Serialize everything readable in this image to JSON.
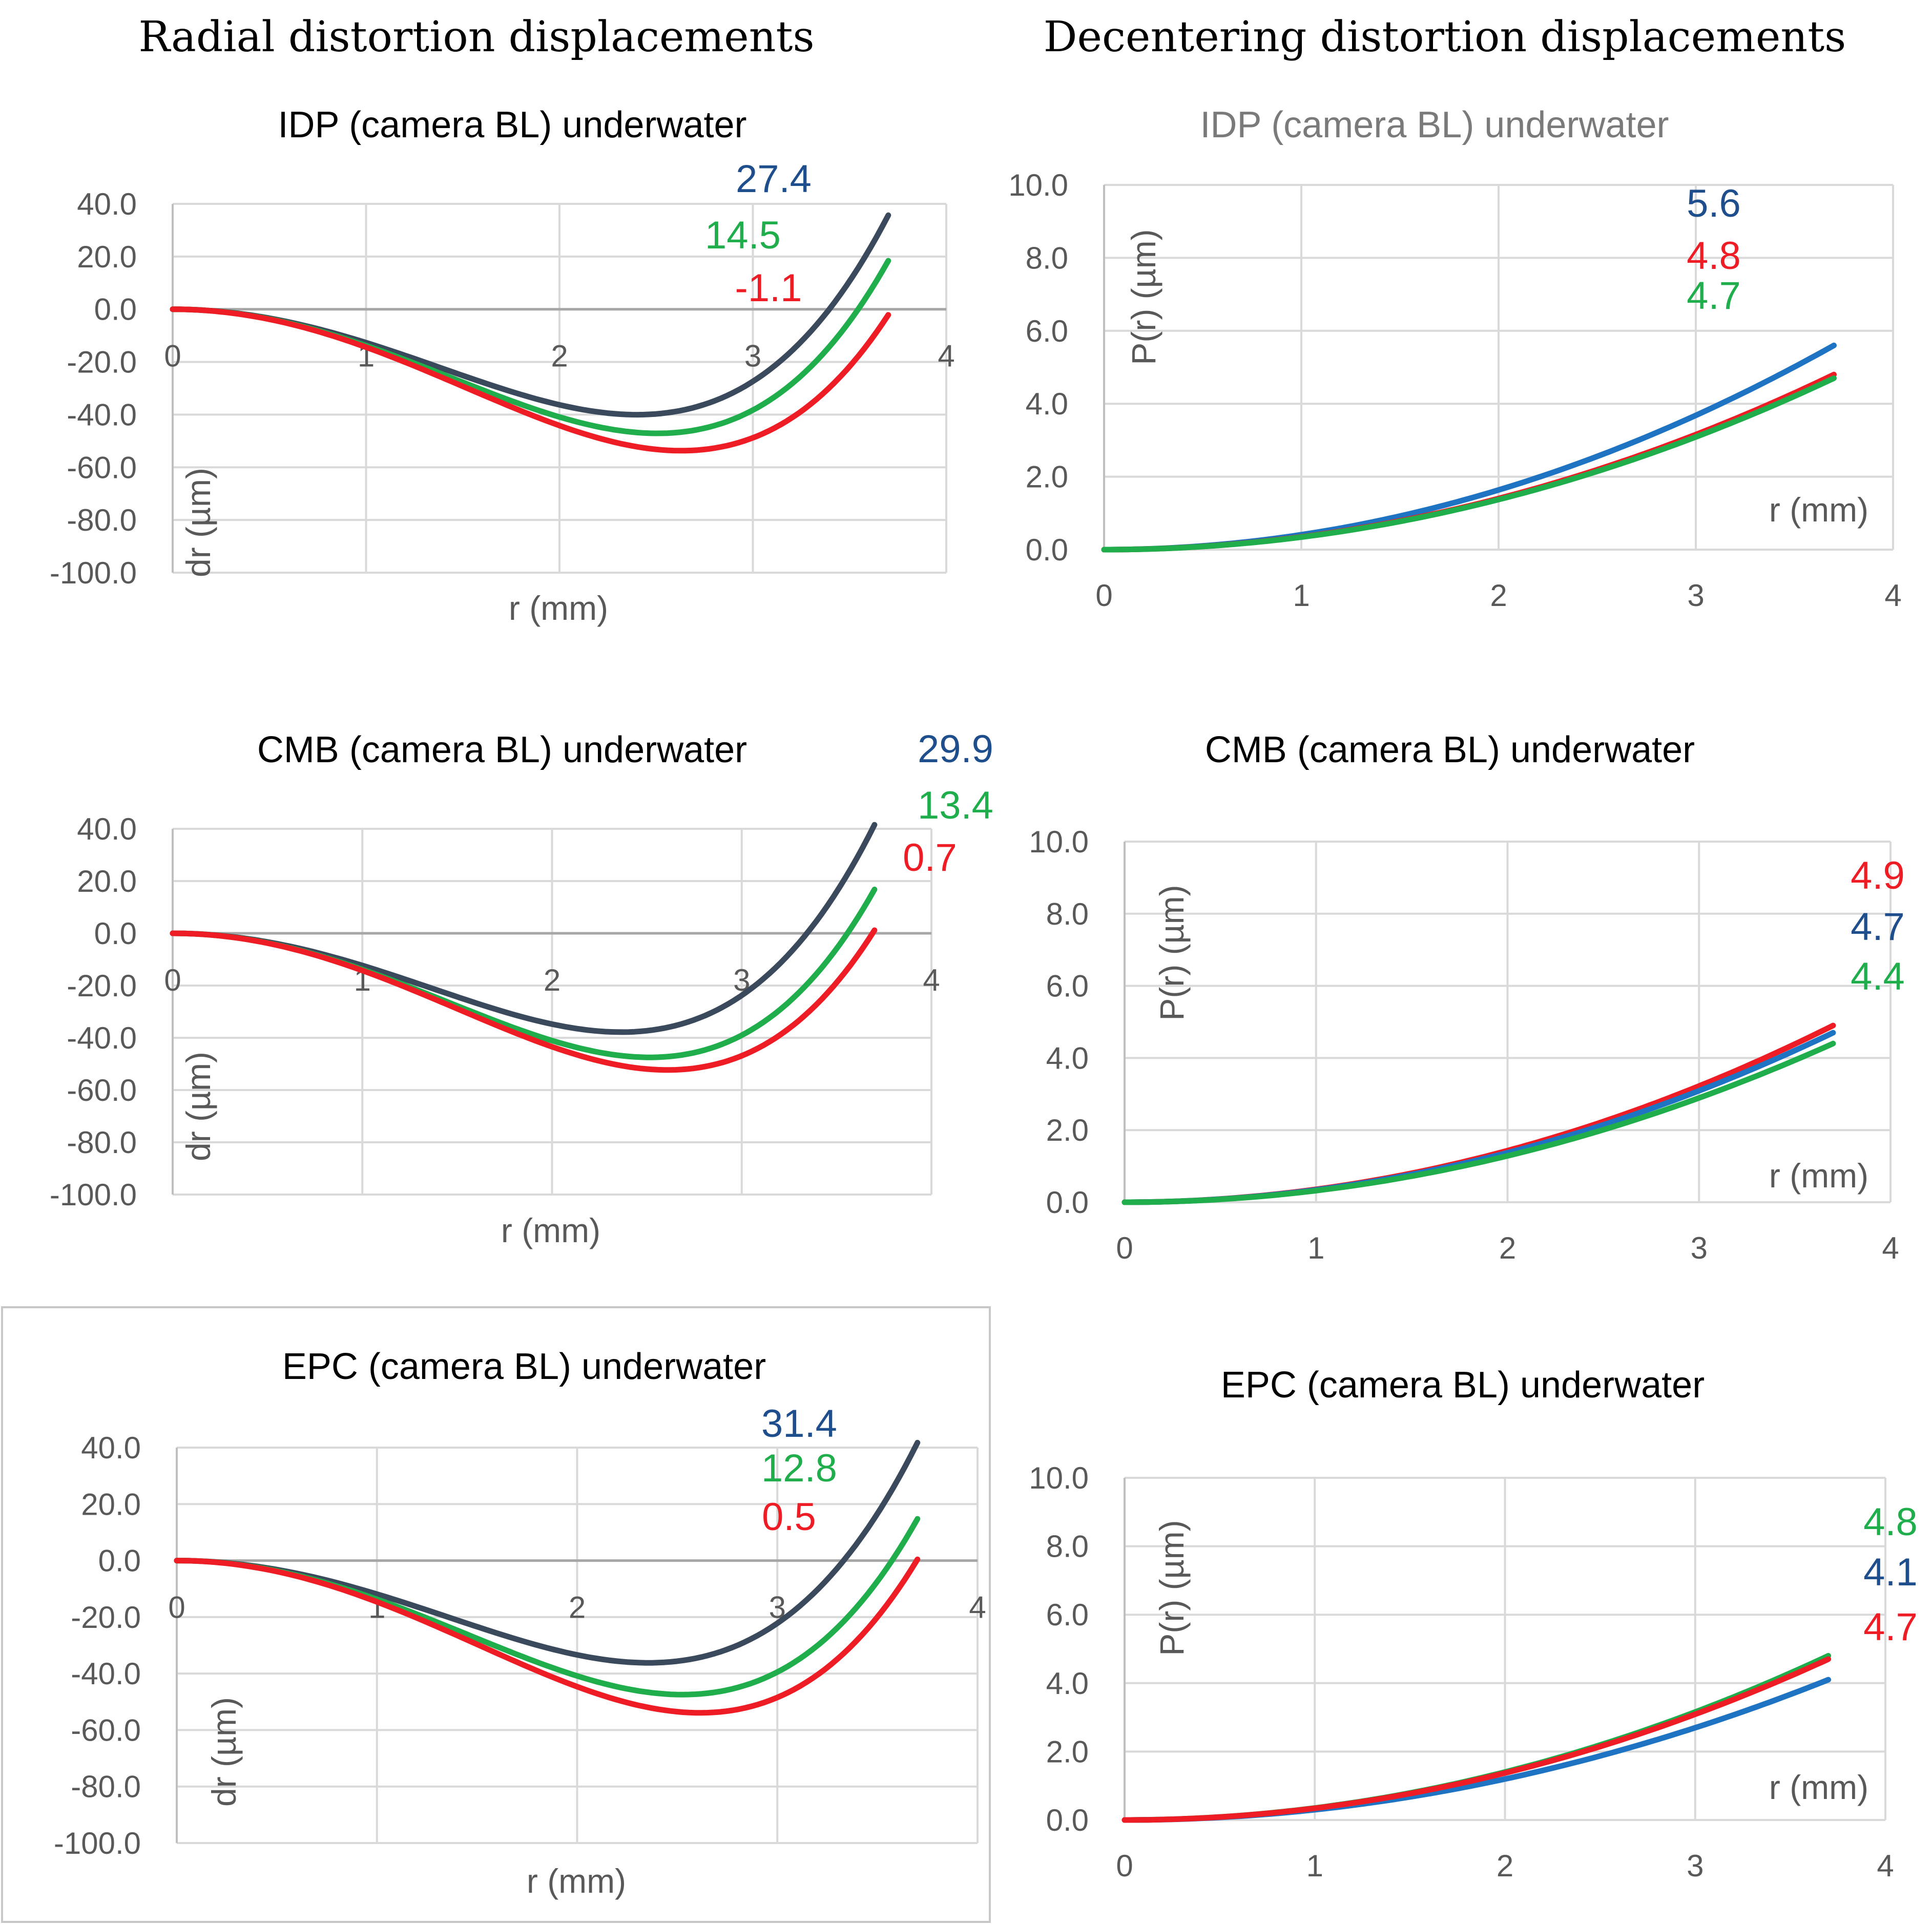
{
  "column_titles": {
    "radial": "Radial distortion displacements",
    "decentering": "Decentering distortion displacements"
  },
  "colors": {
    "dark": "#3a4a5c",
    "green": "#1fae4b",
    "red": "#ee1c24",
    "blue": "#1f73c3",
    "darkblue": "#1f4e8c",
    "grid": "#d9d9d9",
    "axis": "#bfbfbf"
  },
  "chart_data": [
    {
      "id": "radial-idp",
      "type": "line",
      "title": "IDP (camera BL)  underwater",
      "xlabel": "r (mm)",
      "ylabel": "dr (µm)",
      "xlim": [
        0,
        4
      ],
      "ylim": [
        -100,
        40
      ],
      "x_ticks": [
        "0",
        "1",
        "2",
        "3",
        "4"
      ],
      "y_ticks": [
        "40.0",
        "20.0",
        "0.0",
        "-20.0",
        "-40.0",
        "-60.0",
        "-80.0",
        "-100.0"
      ],
      "series": [
        {
          "color": "dark",
          "k1": -13.89,
          "k2": 1.205,
          "x_end": 3.7,
          "end_label": "27.4",
          "label_color": "darkblue"
        },
        {
          "color": "green",
          "k1": -15.0,
          "k2": 1.194,
          "x_end": 3.7,
          "end_label": "14.5",
          "label_color": "green"
        },
        {
          "color": "red",
          "k1": -15.53,
          "k2": 1.123,
          "x_end": 3.7,
          "end_label": "-1.1",
          "label_color": "red"
        }
      ]
    },
    {
      "id": "radial-cmb",
      "type": "line",
      "title": "CMB (camera BL)  underwater",
      "xlabel": "r (mm)",
      "ylabel": "dr (µm)",
      "xlim": [
        0,
        4
      ],
      "ylim": [
        -100,
        40
      ],
      "x_ticks": [
        "0",
        "1",
        "2",
        "3",
        "4"
      ],
      "y_ticks": [
        "40.0",
        "20.0",
        "0.0",
        "-20.0",
        "-40.0",
        "-60.0",
        "-80.0",
        "-100.0"
      ],
      "series": [
        {
          "color": "dark",
          "k1": -13.53,
          "k2": 1.21,
          "x_end": 3.7,
          "end_label": "29.9",
          "label_color": "darkblue"
        },
        {
          "color": "green",
          "k1": -15.01,
          "k2": 1.186,
          "x_end": 3.7,
          "end_label": "13.4",
          "label_color": "green"
        },
        {
          "color": "red",
          "k1": -15.37,
          "k2": 1.129,
          "x_end": 3.7,
          "end_label": "0.7",
          "label_color": "red"
        }
      ]
    },
    {
      "id": "radial-epc",
      "type": "line",
      "title": "EPC (camera BL)  underwater",
      "xlabel": "r (mm)",
      "ylabel": "dr (µm)",
      "xlim": [
        0,
        4
      ],
      "ylim": [
        -100,
        40
      ],
      "x_ticks": [
        "0",
        "1",
        "2",
        "3",
        "4"
      ],
      "y_ticks": [
        "40.0",
        "20.0",
        "0.0",
        "-20.0",
        "-40.0",
        "-60.0",
        "-80.0",
        "-100.0"
      ],
      "series": [
        {
          "color": "dark",
          "k1": -13.05,
          "k2": 1.176,
          "x_end": 3.7,
          "end_label": "31.4",
          "label_color": "darkblue"
        },
        {
          "color": "green",
          "k1": -14.87,
          "k2": 1.165,
          "x_end": 3.7,
          "end_label": "12.8",
          "label_color": "green"
        },
        {
          "color": "red",
          "k1": -15.78,
          "k2": 1.155,
          "x_end": 3.7,
          "end_label": "0.5",
          "label_color": "red"
        }
      ]
    },
    {
      "id": "decentering-idp",
      "type": "line",
      "title": "IDP (camera BL)  underwater",
      "xlabel": "r (mm)",
      "ylabel": "P(r) (µm)",
      "xlim": [
        0,
        4
      ],
      "ylim": [
        0,
        10
      ],
      "x_ticks": [
        "0",
        "1",
        "2",
        "3",
        "4"
      ],
      "y_ticks": [
        "10.0",
        "8.0",
        "6.0",
        "4.0",
        "2.0",
        "0.0"
      ],
      "series": [
        {
          "color": "blue",
          "y_end": 5.6,
          "x_end": 3.7,
          "end_label": "5.6",
          "label_color": "darkblue"
        },
        {
          "color": "red",
          "y_end": 4.8,
          "x_end": 3.7,
          "end_label": "4.8",
          "label_color": "red"
        },
        {
          "color": "green",
          "y_end": 4.7,
          "x_end": 3.7,
          "end_label": "4.7",
          "label_color": "green"
        }
      ]
    },
    {
      "id": "decentering-cmb",
      "type": "line",
      "title": "CMB (camera BL)  underwater",
      "xlabel": "r (mm)",
      "ylabel": "P(r) (µm)",
      "xlim": [
        0,
        4
      ],
      "ylim": [
        0,
        10
      ],
      "x_ticks": [
        "0",
        "1",
        "2",
        "3",
        "4"
      ],
      "y_ticks": [
        "10.0",
        "8.0",
        "6.0",
        "4.0",
        "2.0",
        "0.0"
      ],
      "series": [
        {
          "color": "red",
          "y_end": 4.9,
          "x_end": 3.7,
          "end_label": "4.9",
          "label_color": "red"
        },
        {
          "color": "blue",
          "y_end": 4.7,
          "x_end": 3.7,
          "end_label": "4.7",
          "label_color": "darkblue"
        },
        {
          "color": "green",
          "y_end": 4.4,
          "x_end": 3.7,
          "end_label": "4.4",
          "label_color": "green"
        }
      ]
    },
    {
      "id": "decentering-epc",
      "type": "line",
      "title": "EPC (camera BL)  underwater",
      "xlabel": "r (mm)",
      "ylabel": "P(r) (µm)",
      "xlim": [
        0,
        4
      ],
      "ylim": [
        0,
        10
      ],
      "x_ticks": [
        "0",
        "1",
        "2",
        "3",
        "4"
      ],
      "y_ticks": [
        "10.0",
        "8.0",
        "6.0",
        "4.0",
        "2.0",
        "0.0"
      ],
      "series": [
        {
          "color": "green",
          "y_end": 4.8,
          "x_end": 3.7,
          "end_label": "4.8",
          "label_color": "green"
        },
        {
          "color": "blue",
          "y_end": 4.1,
          "x_end": 3.7,
          "end_label": "4.1",
          "label_color": "darkblue"
        },
        {
          "color": "red",
          "y_end": 4.7,
          "x_end": 3.7,
          "end_label": "4.7",
          "label_color": "red"
        }
      ]
    }
  ]
}
